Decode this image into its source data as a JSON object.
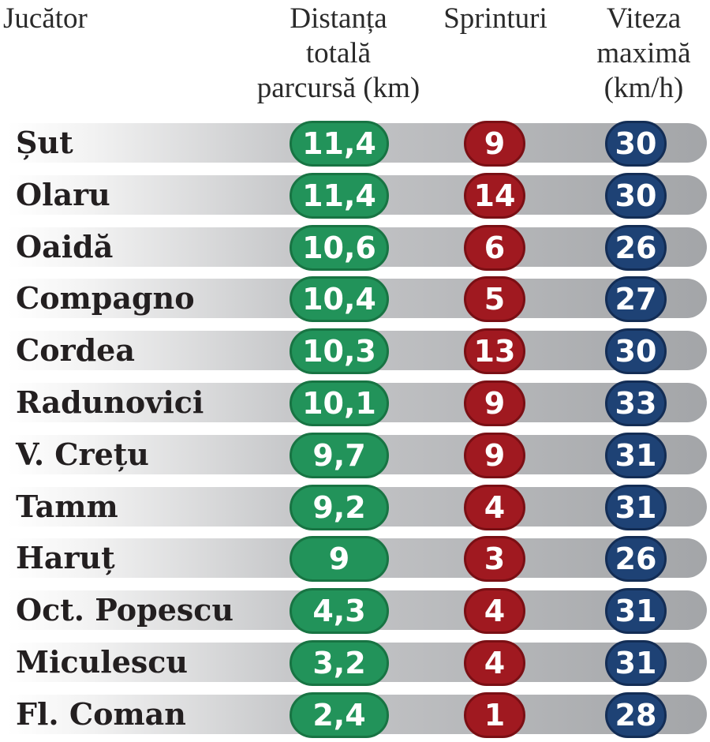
{
  "chart_data": {
    "type": "table",
    "columns": {
      "player": [
        "Jucător"
      ],
      "distance": [
        "Distanța",
        "totală",
        "parcursă (km)"
      ],
      "sprints": [
        "Sprinturi"
      ],
      "speed": [
        "Viteza",
        "maximă",
        "(km/h)"
      ]
    },
    "rows": [
      {
        "player": "Șut",
        "distance": "11,4",
        "sprints": "9",
        "speed": "30"
      },
      {
        "player": "Olaru",
        "distance": "11,4",
        "sprints": "14",
        "speed": "30"
      },
      {
        "player": "Oaidă",
        "distance": "10,6",
        "sprints": "6",
        "speed": "26"
      },
      {
        "player": "Compagno",
        "distance": "10,4",
        "sprints": "5",
        "speed": "27"
      },
      {
        "player": "Cordea",
        "distance": "10,3",
        "sprints": "13",
        "speed": "30"
      },
      {
        "player": "Radunovici",
        "distance": "10,1",
        "sprints": "9",
        "speed": "33"
      },
      {
        "player": "V. Crețu",
        "distance": "9,7",
        "sprints": "9",
        "speed": "31"
      },
      {
        "player": "Tamm",
        "distance": "9,2",
        "sprints": "4",
        "speed": "31"
      },
      {
        "player": "Haruț",
        "distance": "9",
        "sprints": "3",
        "speed": "26"
      },
      {
        "player": "Oct. Popescu",
        "distance": "4,3",
        "sprints": "4",
        "speed": "31"
      },
      {
        "player": "Miculescu",
        "distance": "3,2",
        "sprints": "4",
        "speed": "31"
      },
      {
        "player": "Fl. Coman",
        "distance": "2,4",
        "sprints": "1",
        "speed": "28"
      }
    ]
  },
  "colors": {
    "distance": "#22935a",
    "sprints": "#a01920",
    "speed": "#1e4275",
    "bar": "#a3a5a8"
  }
}
